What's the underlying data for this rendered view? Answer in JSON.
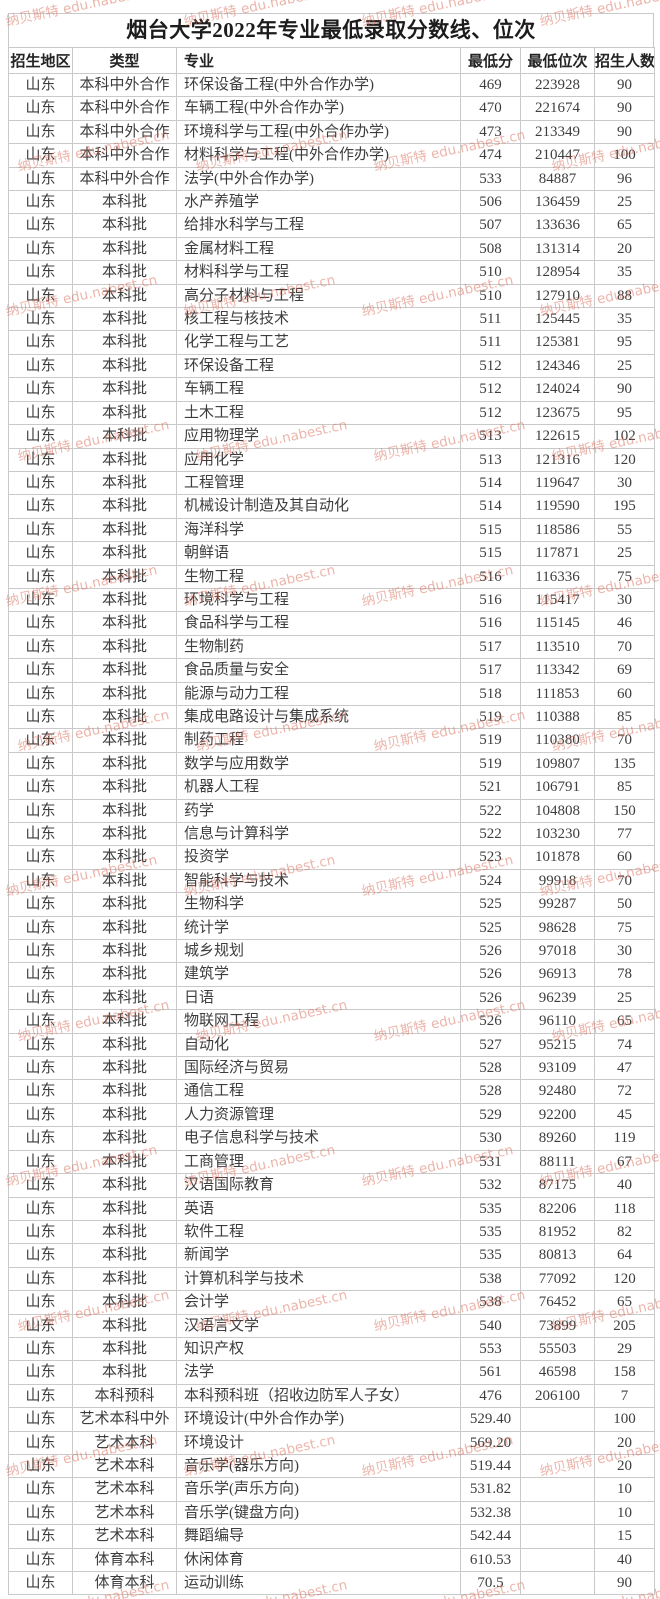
{
  "page": {
    "title": "烟台大学2022年专业最低录取分数线、位次"
  },
  "watermark": {
    "text": "纳贝斯特 edu.nabest.cn",
    "color": "#d96b57"
  },
  "table": {
    "headers": [
      "招生地区",
      "类型",
      "专业",
      "最低分",
      "最低位次",
      "招生人数"
    ],
    "rows": [
      [
        "山东",
        "本科中外合作",
        "环保设备工程(中外合作办学)",
        "469",
        "223928",
        "90"
      ],
      [
        "山东",
        "本科中外合作",
        "车辆工程(中外合作办学)",
        "470",
        "221674",
        "90"
      ],
      [
        "山东",
        "本科中外合作",
        "环境科学与工程(中外合作办学)",
        "473",
        "213349",
        "90"
      ],
      [
        "山东",
        "本科中外合作",
        "材料科学与工程(中外合作办学)",
        "474",
        "210447",
        "100"
      ],
      [
        "山东",
        "本科中外合作",
        "法学(中外合作办学)",
        "533",
        "84887",
        "96"
      ],
      [
        "山东",
        "本科批",
        "水产养殖学",
        "506",
        "136459",
        "25"
      ],
      [
        "山东",
        "本科批",
        "给排水科学与工程",
        "507",
        "133636",
        "65"
      ],
      [
        "山东",
        "本科批",
        "金属材料工程",
        "508",
        "131314",
        "20"
      ],
      [
        "山东",
        "本科批",
        "材料科学与工程",
        "510",
        "128954",
        "35"
      ],
      [
        "山东",
        "本科批",
        "高分子材料与工程",
        "510",
        "127910",
        "88"
      ],
      [
        "山东",
        "本科批",
        "核工程与核技术",
        "511",
        "125445",
        "35"
      ],
      [
        "山东",
        "本科批",
        "化学工程与工艺",
        "511",
        "125381",
        "95"
      ],
      [
        "山东",
        "本科批",
        "环保设备工程",
        "512",
        "124346",
        "25"
      ],
      [
        "山东",
        "本科批",
        "车辆工程",
        "512",
        "124024",
        "90"
      ],
      [
        "山东",
        "本科批",
        "土木工程",
        "512",
        "123675",
        "95"
      ],
      [
        "山东",
        "本科批",
        "应用物理学",
        "513",
        "122615",
        "102"
      ],
      [
        "山东",
        "本科批",
        "应用化学",
        "513",
        "121316",
        "120"
      ],
      [
        "山东",
        "本科批",
        "工程管理",
        "514",
        "119647",
        "30"
      ],
      [
        "山东",
        "本科批",
        "机械设计制造及其自动化",
        "514",
        "119590",
        "195"
      ],
      [
        "山东",
        "本科批",
        "海洋科学",
        "515",
        "118586",
        "55"
      ],
      [
        "山东",
        "本科批",
        "朝鲜语",
        "515",
        "117871",
        "25"
      ],
      [
        "山东",
        "本科批",
        "生物工程",
        "516",
        "116336",
        "75"
      ],
      [
        "山东",
        "本科批",
        "环境科学与工程",
        "516",
        "115417",
        "30"
      ],
      [
        "山东",
        "本科批",
        "食品科学与工程",
        "516",
        "115145",
        "46"
      ],
      [
        "山东",
        "本科批",
        "生物制药",
        "517",
        "113510",
        "70"
      ],
      [
        "山东",
        "本科批",
        "食品质量与安全",
        "517",
        "113342",
        "69"
      ],
      [
        "山东",
        "本科批",
        "能源与动力工程",
        "518",
        "111853",
        "60"
      ],
      [
        "山东",
        "本科批",
        "集成电路设计与集成系统",
        "519",
        "110388",
        "85"
      ],
      [
        "山东",
        "本科批",
        "制药工程",
        "519",
        "110380",
        "70"
      ],
      [
        "山东",
        "本科批",
        "数学与应用数学",
        "519",
        "109807",
        "135"
      ],
      [
        "山东",
        "本科批",
        "机器人工程",
        "521",
        "106791",
        "85"
      ],
      [
        "山东",
        "本科批",
        "药学",
        "522",
        "104808",
        "150"
      ],
      [
        "山东",
        "本科批",
        "信息与计算科学",
        "522",
        "103230",
        "77"
      ],
      [
        "山东",
        "本科批",
        "投资学",
        "523",
        "101878",
        "60"
      ],
      [
        "山东",
        "本科批",
        "智能科学与技术",
        "524",
        "99918",
        "70"
      ],
      [
        "山东",
        "本科批",
        "生物科学",
        "525",
        "99287",
        "50"
      ],
      [
        "山东",
        "本科批",
        "统计学",
        "525",
        "98628",
        "75"
      ],
      [
        "山东",
        "本科批",
        "城乡规划",
        "526",
        "97018",
        "30"
      ],
      [
        "山东",
        "本科批",
        "建筑学",
        "526",
        "96913",
        "78"
      ],
      [
        "山东",
        "本科批",
        "日语",
        "526",
        "96239",
        "25"
      ],
      [
        "山东",
        "本科批",
        "物联网工程",
        "526",
        "96110",
        "65"
      ],
      [
        "山东",
        "本科批",
        "自动化",
        "527",
        "95215",
        "74"
      ],
      [
        "山东",
        "本科批",
        "国际经济与贸易",
        "528",
        "93109",
        "47"
      ],
      [
        "山东",
        "本科批",
        "通信工程",
        "528",
        "92480",
        "72"
      ],
      [
        "山东",
        "本科批",
        "人力资源管理",
        "529",
        "92200",
        "45"
      ],
      [
        "山东",
        "本科批",
        "电子信息科学与技术",
        "530",
        "89260",
        "119"
      ],
      [
        "山东",
        "本科批",
        "工商管理",
        "531",
        "88111",
        "67"
      ],
      [
        "山东",
        "本科批",
        "汉语国际教育",
        "532",
        "87175",
        "40"
      ],
      [
        "山东",
        "本科批",
        "英语",
        "535",
        "82206",
        "118"
      ],
      [
        "山东",
        "本科批",
        "软件工程",
        "535",
        "81952",
        "82"
      ],
      [
        "山东",
        "本科批",
        "新闻学",
        "535",
        "80813",
        "64"
      ],
      [
        "山东",
        "本科批",
        "计算机科学与技术",
        "538",
        "77092",
        "120"
      ],
      [
        "山东",
        "本科批",
        "会计学",
        "538",
        "76452",
        "65"
      ],
      [
        "山东",
        "本科批",
        "汉语言文学",
        "540",
        "73899",
        "205"
      ],
      [
        "山东",
        "本科批",
        "知识产权",
        "553",
        "55503",
        "29"
      ],
      [
        "山东",
        "本科批",
        "法学",
        "561",
        "46598",
        "158"
      ],
      [
        "山东",
        "本科预科",
        "本科预科班（招收边防军人子女）",
        "476",
        "206100",
        "7"
      ],
      [
        "山东",
        "艺术本科中外",
        "环境设计(中外合作办学)",
        "529.40",
        "",
        "100"
      ],
      [
        "山东",
        "艺术本科",
        "环境设计",
        "569.20",
        "",
        "20"
      ],
      [
        "山东",
        "艺术本科",
        "音乐学(器乐方向)",
        "519.44",
        "",
        "20"
      ],
      [
        "山东",
        "艺术本科",
        "音乐学(声乐方向)",
        "531.82",
        "",
        "10"
      ],
      [
        "山东",
        "艺术本科",
        "音乐学(键盘方向)",
        "532.38",
        "",
        "10"
      ],
      [
        "山东",
        "艺术本科",
        "舞蹈编导",
        "542.44",
        "",
        "15"
      ],
      [
        "山东",
        "体育本科",
        "休闲体育",
        "610.53",
        "",
        "40"
      ],
      [
        "山东",
        "体育本科",
        "运动训练",
        "70.5",
        "",
        "90"
      ]
    ]
  }
}
